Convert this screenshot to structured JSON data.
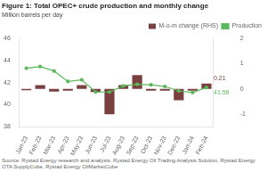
{
  "chart_data": {
    "type": "bar",
    "title": "Figure 1: Total OPEC+ crude production and monthly change",
    "subtitle": "Million barrels per day",
    "source": "Source: Rystad Energy research and analysis, Rystad Energy Oil Trading Analysis Solution, Rystad Energy OTA SupplyCube, Rystad Energy OilMarketCube",
    "categories": [
      "Jan-23",
      "Feb-23",
      "Mar-23",
      "Apr-23",
      "May-23",
      "Jun-23",
      "Jul-23",
      "Aug-23",
      "Sep-23",
      "Oct-23",
      "Nov-23",
      "Dec-23",
      "Jan-24",
      "Feb-24"
    ],
    "series": [
      {
        "name": "M-o-m change (RHS)",
        "type": "bar",
        "axis": "y2",
        "color": "#7a4040",
        "values": [
          -0.05,
          0.15,
          -0.1,
          -0.07,
          0.15,
          -0.12,
          -1.0,
          0.15,
          0.55,
          -0.07,
          -0.07,
          -0.45,
          -0.07,
          0.21
        ]
      },
      {
        "name": "Production",
        "type": "line",
        "color": "#5cb85c",
        "marker": "o",
        "values": [
          43.3,
          43.45,
          43.05,
          42.1,
          42.25,
          41.15,
          41.15,
          41.7,
          41.85,
          41.8,
          41.65,
          41.25,
          41.1,
          41.56
        ]
      }
    ],
    "ylim": [
      38,
      46
    ],
    "yticks": [
      38,
      40,
      42,
      44,
      46
    ],
    "y2lim": [
      -1.5,
      2.0
    ],
    "y2ticks": [
      -1,
      0,
      1,
      2
    ],
    "grid": false,
    "legend": "upper right",
    "annotations": [
      {
        "text": "41.56",
        "x": "Feb-24",
        "y": 41.56,
        "color": "#5cb85c"
      },
      {
        "text": "0.21",
        "x": "Feb-24",
        "y": 0.21,
        "axis": "y2",
        "color": "#7a4040"
      }
    ]
  }
}
